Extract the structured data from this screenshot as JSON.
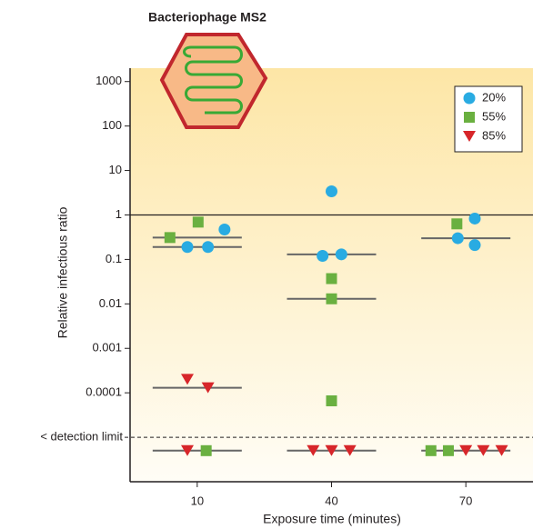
{
  "chart_data": {
    "type": "scatter",
    "title": "Bacteriophage MS2",
    "xlabel": "Exposure time (minutes)",
    "ylabel": "Relative infectious ratio",
    "log_y": true,
    "xlim": [
      -5,
      85
    ],
    "xticks": [
      10,
      40,
      70
    ],
    "ylim": [
      1e-06,
      2000
    ],
    "yticks": [
      1000,
      100,
      10,
      1,
      0.1,
      0.01,
      0.001,
      0.0001,
      {
        "value": 1e-05,
        "label": "< detection limit"
      }
    ],
    "reference_line": 1,
    "legend": "top-right",
    "series": [
      {
        "name": "20%",
        "color": "#29abe2",
        "marker": "circle",
        "x": [
          7.8,
          12.4,
          16.1,
          40,
          38,
          42.2,
          68.2,
          72,
          72
        ],
        "values": [
          0.19,
          0.19,
          0.47,
          3.4,
          0.12,
          0.13,
          0.3,
          0.83,
          0.21
        ]
      },
      {
        "name": "55%",
        "color": "#6ab040",
        "marker": "square",
        "x": [
          3.9,
          10.2,
          12,
          40,
          40,
          40,
          68,
          62.2,
          66.1
        ],
        "values": [
          0.31,
          0.69,
          5e-06,
          0.037,
          0.013,
          6.6e-05,
          0.63,
          5e-06,
          5e-06
        ]
      },
      {
        "name": "85%",
        "color": "#d7262a",
        "marker": "triangle-down",
        "x": [
          7.8,
          12.4,
          7.8,
          35.9,
          40,
          44.1,
          70,
          73.9,
          78
        ],
        "values": [
          0.0002,
          0.00013,
          5e-06,
          5e-06,
          5e-06,
          5e-06,
          5e-06,
          5e-06,
          5e-06
        ]
      }
    ],
    "median_lines": {
      "color": "#666666",
      "x": [
        10,
        10,
        10,
        10,
        40,
        40,
        40,
        70,
        70
      ],
      "values": [
        0.31,
        0.19,
        0.00013,
        5e-06,
        0.13,
        0.013,
        5e-06,
        0.3,
        5e-06
      ]
    }
  }
}
